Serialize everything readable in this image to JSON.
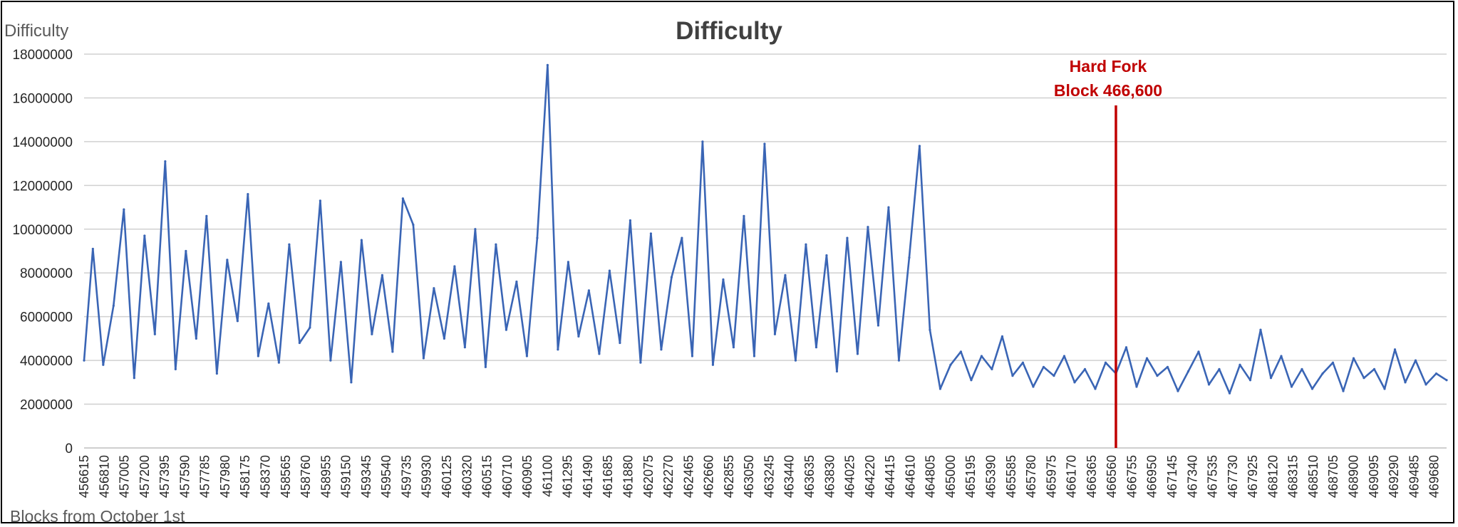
{
  "chart_data": {
    "type": "line",
    "title": "Difficulty",
    "ylabel": "Difficulty",
    "xlabel": "Blocks from October 1st",
    "ylim": [
      0,
      18000000
    ],
    "y_ticks": [
      "0",
      "2000000",
      "4000000",
      "6000000",
      "8000000",
      "10000000",
      "12000000",
      "14000000",
      "16000000",
      "18000000"
    ],
    "xlim": [
      456615,
      469800
    ],
    "x_ticks": [
      "456615",
      "456810",
      "457005",
      "457200",
      "457395",
      "457590",
      "457785",
      "457980",
      "458175",
      "458370",
      "458565",
      "458760",
      "458955",
      "459150",
      "459345",
      "459540",
      "459735",
      "459930",
      "460125",
      "460320",
      "460515",
      "460710",
      "460905",
      "461100",
      "461295",
      "461490",
      "461685",
      "461880",
      "462075",
      "462270",
      "462465",
      "462660",
      "462855",
      "463050",
      "463245",
      "463440",
      "463635",
      "463830",
      "464025",
      "464220",
      "464415",
      "464610",
      "464805",
      "465000",
      "465195",
      "465390",
      "465585",
      "465780",
      "465975",
      "466170",
      "466365",
      "466560",
      "466755",
      "466950",
      "467145",
      "467340",
      "467535",
      "467730",
      "467925",
      "468120",
      "468315",
      "468510",
      "468705",
      "468900",
      "469095",
      "469290",
      "469485",
      "469680"
    ],
    "grid": true,
    "series_color": "#3a65b5",
    "annotation": {
      "lines": [
        "Hard Fork",
        "Block 466,600"
      ],
      "block": 466600,
      "color": "#c00000"
    },
    "series": [
      {
        "x": [
          456615,
          456700,
          456800,
          456900,
          457000,
          457100,
          457200,
          457300,
          457400,
          457500,
          457600,
          457700,
          457800,
          457900,
          458000,
          458100,
          458200,
          458300,
          458400,
          458500,
          458600,
          458700,
          458800,
          458900,
          459000,
          459100,
          459200,
          459300,
          459400,
          459500,
          459600,
          459700,
          459800,
          459900,
          460000,
          460100,
          460200,
          460300,
          460400,
          460500,
          460600,
          460700,
          460800,
          460900,
          461000,
          461100,
          461200,
          461300,
          461400,
          461500,
          461600,
          461700,
          461800,
          461900,
          462000,
          462100,
          462200,
          462300,
          462400,
          462500,
          462600,
          462700,
          462800,
          462900,
          463000,
          463100,
          463200,
          463300,
          463400,
          463500,
          463600,
          463700,
          463800,
          463900,
          464000,
          464100,
          464200,
          464300,
          464400,
          464500,
          464600,
          464700,
          464800,
          464900,
          465000,
          465100,
          465200,
          465300,
          465400,
          465500,
          465600,
          465700,
          465800,
          465900,
          466000,
          466100,
          466200,
          466300,
          466400,
          466500,
          466600,
          466700,
          466800,
          466900,
          467000,
          467100,
          467200,
          467300,
          467400,
          467500,
          467600,
          467700,
          467800,
          467900,
          468000,
          468100,
          468200,
          468300,
          468400,
          468500,
          468600,
          468700,
          468800,
          468900,
          469000,
          469100,
          469200,
          469300,
          469400,
          469500,
          469600,
          469700,
          469800
        ],
        "values": [
          4000000,
          9100000,
          3800000,
          6500000,
          10900000,
          3200000,
          9700000,
          5200000,
          13100000,
          3600000,
          9000000,
          5000000,
          10600000,
          3400000,
          8600000,
          5800000,
          11600000,
          4200000,
          6600000,
          3900000,
          9300000,
          4800000,
          5500000,
          11300000,
          4000000,
          8500000,
          3000000,
          9500000,
          5200000,
          7900000,
          4400000,
          11400000,
          10200000,
          4100000,
          7300000,
          5000000,
          8300000,
          4600000,
          10000000,
          3700000,
          9300000,
          5400000,
          7600000,
          4200000,
          9600000,
          17500000,
          4500000,
          8500000,
          5100000,
          7200000,
          4300000,
          8100000,
          4800000,
          10400000,
          3900000,
          9800000,
          4500000,
          7800000,
          9600000,
          4200000,
          14000000,
          3800000,
          7700000,
          4600000,
          10600000,
          4200000,
          13900000,
          5200000,
          7900000,
          4000000,
          9300000,
          4600000,
          8800000,
          3500000,
          9600000,
          4300000,
          10100000,
          5600000,
          11000000,
          4000000,
          8700000,
          13800000,
          5400000,
          2700000,
          3800000,
          4400000,
          3100000,
          4200000,
          3600000,
          5100000,
          3300000,
          3900000,
          2800000,
          3700000,
          3300000,
          4200000,
          3000000,
          3600000,
          2700000,
          3900000,
          3400000,
          4600000,
          2800000,
          4100000,
          3300000,
          3700000,
          2600000,
          3500000,
          4400000,
          2900000,
          3600000,
          2500000,
          3800000,
          3100000,
          5400000,
          3200000,
          4200000,
          2800000,
          3600000,
          2700000,
          3400000,
          3900000,
          2600000,
          4100000,
          3200000,
          3600000,
          2700000,
          4500000,
          3000000,
          4000000,
          2900000,
          3400000,
          3100000
        ]
      }
    ]
  }
}
